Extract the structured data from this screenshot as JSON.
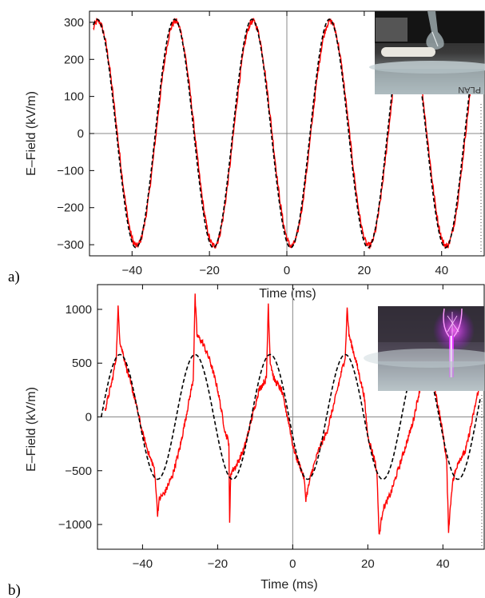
{
  "colors": {
    "measured": "#ff0000",
    "fit": "#000000",
    "frame": "#000000",
    "zero_lines": "#888888"
  },
  "panels": [
    {
      "label": "a)",
      "photo_description": "glass bulb electrode above water, no discharge"
    },
    {
      "label": "b)",
      "photo_description": "glass bulb electrode with purple plasma discharge to water"
    }
  ],
  "chart_data": [
    {
      "type": "line",
      "panel": "a)",
      "xlabel": "Time (ms)",
      "ylabel": "E–Field (kV/m)",
      "xlim": [
        -51,
        51
      ],
      "ylim": [
        -330,
        330
      ],
      "xticks": [
        -40,
        -20,
        0,
        20,
        40
      ],
      "xtick_labels": [
        "−40",
        "−20",
        "0",
        "20",
        "40"
      ],
      "yticks": [
        -300,
        -200,
        -100,
        0,
        100,
        200,
        300
      ],
      "ytick_labels": [
        "−300",
        "−200",
        "−100",
        "0",
        "100",
        "200",
        "300"
      ],
      "grid": false,
      "zero_lines": true,
      "series": [
        {
          "style": "solid",
          "color": "#ff0000",
          "model": "sine",
          "amplitude": 303,
          "frequency_hz": 50,
          "peak_time_ms": [
            -48.8,
            -29,
            -9,
            11,
            31
          ],
          "noise": 9
        },
        {
          "style": "dashed",
          "color": "#000000",
          "model": "sine",
          "amplitude": 308,
          "frequency_hz": 50,
          "peak_time_ms": [
            -49,
            -29,
            -9,
            11,
            31
          ]
        }
      ]
    },
    {
      "type": "line",
      "panel": "b)",
      "xlabel": "Time (ms)",
      "ylabel": "E–Field (kV/m)",
      "xlim": [
        -52,
        51
      ],
      "ylim": [
        -1230,
        1230
      ],
      "xticks": [
        -40,
        -20,
        0,
        20,
        40
      ],
      "xtick_labels": [
        "−40",
        "−20",
        "0",
        "20",
        "40"
      ],
      "yticks": [
        -1000,
        -500,
        0,
        500,
        1000
      ],
      "ytick_labels": [
        "−1000",
        "−500",
        "0",
        "500",
        "1000"
      ],
      "grid": false,
      "zero_lines": true,
      "series": [
        {
          "style": "solid",
          "color": "#ff0000",
          "model": "discharge",
          "points": [
            [
              -50,
              60
            ],
            [
              -48,
              350
            ],
            [
              -47,
              560
            ],
            [
              -46.5,
              1010
            ],
            [
              -46,
              700
            ],
            [
              -45,
              560
            ],
            [
              -44,
              420
            ],
            [
              -42,
              160
            ],
            [
              -40,
              -150
            ],
            [
              -38,
              -380
            ],
            [
              -37,
              -460
            ],
            [
              -36.5,
              -620
            ],
            [
              -36,
              -900
            ],
            [
              -35.5,
              -760
            ],
            [
              -34,
              -700
            ],
            [
              -32,
              -540
            ],
            [
              -30,
              -280
            ],
            [
              -28,
              80
            ],
            [
              -26.5,
              350
            ],
            [
              -26,
              1120
            ],
            [
              -25.5,
              760
            ],
            [
              -24,
              690
            ],
            [
              -22,
              520
            ],
            [
              -20,
              260
            ],
            [
              -18,
              -140
            ],
            [
              -17,
              -240
            ],
            [
              -16.8,
              -1010
            ],
            [
              -16.5,
              -520
            ],
            [
              -15,
              -450
            ],
            [
              -13,
              -300
            ],
            [
              -11,
              -30
            ],
            [
              -9,
              250
            ],
            [
              -7,
              360
            ],
            [
              -6.5,
              1050
            ],
            [
              -6,
              520
            ],
            [
              -5,
              350
            ],
            [
              -3,
              250
            ],
            [
              -1,
              -60
            ],
            [
              0,
              -260
            ],
            [
              1,
              -380
            ],
            [
              2,
              -460
            ],
            [
              3,
              -570
            ],
            [
              3.5,
              -760
            ],
            [
              5,
              -520
            ],
            [
              7,
              -300
            ],
            [
              9,
              -150
            ],
            [
              11,
              120
            ],
            [
              13,
              420
            ],
            [
              14,
              560
            ],
            [
              14.5,
              1010
            ],
            [
              15,
              760
            ],
            [
              17,
              500
            ],
            [
              19,
              200
            ],
            [
              20,
              -180
            ],
            [
              22,
              -420
            ],
            [
              22.5,
              -560
            ],
            [
              23,
              -1110
            ],
            [
              24,
              -860
            ],
            [
              26,
              -720
            ],
            [
              28,
              -500
            ],
            [
              30,
              -280
            ],
            [
              32,
              -50
            ],
            [
              34,
              280
            ],
            [
              35,
              400
            ],
            [
              36,
              450
            ],
            [
              38,
              240
            ],
            [
              40,
              -150
            ],
            [
              41,
              -420
            ],
            [
              41.5,
              -1050
            ],
            [
              42.5,
              -620
            ],
            [
              44,
              -420
            ],
            [
              46,
              -320
            ],
            [
              48,
              0
            ],
            [
              49.5,
              260
            ]
          ],
          "noise": 30
        },
        {
          "style": "dashed",
          "color": "#000000",
          "model": "sine",
          "amplitude": 580,
          "frequency_hz": 50,
          "peak_time_ms": [
            -46,
            -26,
            -6,
            14,
            34
          ]
        }
      ]
    }
  ]
}
